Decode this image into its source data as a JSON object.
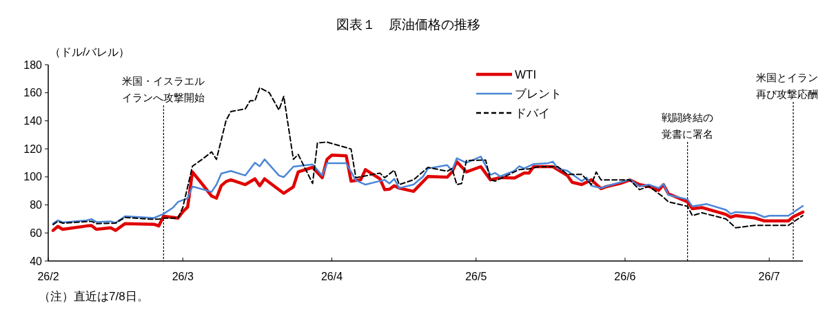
{
  "chart_data": {
    "type": "line",
    "title": "図表１　原油価格の推移",
    "ylabel": "（ドル/バレル）",
    "xlim": [
      "--02-01",
      "--07-08"
    ],
    "xticks": [
      {
        "value": "--02-01",
        "label": "26/2"
      },
      {
        "value": "--03-01",
        "label": "26/3"
      },
      {
        "value": "--04-01",
        "label": "26/4"
      },
      {
        "value": "--05-01",
        "label": "26/5"
      },
      {
        "value": "--06-01",
        "label": "26/6"
      },
      {
        "value": "--07-01",
        "label": "26/7"
      }
    ],
    "ylim": [
      40,
      180
    ],
    "yticks": [
      40,
      60,
      80,
      100,
      120,
      140,
      160,
      180
    ],
    "grid": false,
    "legend": "top",
    "marker": "none",
    "series": [
      {
        "name": "WTI",
        "color": "#e00000",
        "line_style": "solid",
        "x": [
          "--02-02",
          "--02-03",
          "--02-04",
          "--02-09",
          "--02-10",
          "--02-11",
          "--02-14",
          "--02-15",
          "--02-17",
          "--02-23",
          "--02-24",
          "--02-25",
          "--02-28",
          "--03-01",
          "--03-02",
          "--03-03",
          "--03-05",
          "--03-07",
          "--03-08",
          "--03-09",
          "--03-10",
          "--03-11",
          "--03-14",
          "--03-16",
          "--03-17",
          "--03-18",
          "--03-22",
          "--03-24",
          "--03-25",
          "--03-28",
          "--03-30",
          "--03-31",
          "--04-01",
          "--04-04",
          "--04-05",
          "--04-07",
          "--04-08",
          "--04-11",
          "--04-12",
          "--04-13",
          "--04-14",
          "--04-15",
          "--04-18",
          "--04-21",
          "--04-25",
          "--04-26",
          "--04-27",
          "--04-29",
          "--05-02",
          "--05-04",
          "--05-06",
          "--05-09",
          "--05-11",
          "--05-12",
          "--05-13",
          "--05-17",
          "--05-20",
          "--05-21",
          "--05-23",
          "--05-25",
          "--05-27",
          "--05-28",
          "--05-31",
          "--06-02",
          "--06-04",
          "--06-06",
          "--06-08",
          "--06-09",
          "--06-10",
          "--06-14",
          "--06-15",
          "--06-17",
          "--06-22",
          "--06-23",
          "--06-24",
          "--06-28",
          "--06-30",
          "--07-05",
          "--07-06",
          "--07-08"
        ],
        "values": [
          61.8,
          64.7,
          62.6,
          65,
          65.3,
          62.6,
          63.7,
          61.8,
          66.7,
          66.2,
          65,
          72,
          70.6,
          75.2,
          78.5,
          103.5,
          95,
          86.3,
          84.8,
          93.7,
          96.7,
          97.9,
          94.5,
          98.6,
          93.7,
          98.6,
          88.3,
          92.9,
          103.5,
          106.8,
          99.4,
          112.5,
          115.5,
          115,
          97,
          97.9,
          105.2,
          98.6,
          90.9,
          91.2,
          93.7,
          92,
          89.7,
          100.3,
          99.8,
          103.5,
          110.9,
          103.5,
          107.3,
          97.9,
          99.5,
          99.2,
          102.7,
          102.7,
          107.3,
          107.3,
          101,
          96.1,
          94.5,
          97.9,
          91.6,
          92.9,
          95.3,
          97.8,
          94.5,
          93.2,
          90.4,
          94.5,
          88,
          82.2,
          77.3,
          78.1,
          73.2,
          71.2,
          72.4,
          70.7,
          68.6,
          68.6,
          71.6,
          74.9
        ]
      },
      {
        "name": "ブレント",
        "color": "#4a86d8",
        "line_style": "solid",
        "x": [
          "--02-02",
          "--02-03",
          "--02-04",
          "--02-09",
          "--02-10",
          "--02-11",
          "--02-14",
          "--02-15",
          "--02-17",
          "--02-23",
          "--02-25",
          "--02-27",
          "--02-28",
          "--03-02",
          "--03-03",
          "--03-07",
          "--03-08",
          "--03-09",
          "--03-11",
          "--03-14",
          "--03-16",
          "--03-17",
          "--03-18",
          "--03-21",
          "--03-22",
          "--03-24",
          "--03-28",
          "--03-30",
          "--03-31",
          "--04-04",
          "--04-06",
          "--04-08",
          "--04-12",
          "--04-13",
          "--04-14",
          "--04-15",
          "--04-18",
          "--04-20",
          "--04-21",
          "--04-25",
          "--04-26",
          "--04-27",
          "--04-29",
          "--05-02",
          "--05-04",
          "--05-05",
          "--05-06",
          "--05-09",
          "--05-10",
          "--05-11",
          "--05-13",
          "--05-16",
          "--05-17",
          "--05-18",
          "--05-20",
          "--05-23",
          "--05-24",
          "--05-25",
          "--05-27",
          "--05-28",
          "--05-31",
          "--06-02",
          "--06-04",
          "--06-06",
          "--06-08",
          "--06-09",
          "--06-10",
          "--06-14",
          "--06-15",
          "--06-18",
          "--06-22",
          "--06-23",
          "--06-24",
          "--06-28",
          "--06-30",
          "--07-01",
          "--07-05",
          "--07-08"
        ],
        "values": [
          66.7,
          69,
          67.5,
          69,
          69.9,
          67.8,
          68.3,
          67.2,
          71.9,
          70.7,
          73.6,
          78.2,
          82.2,
          84.8,
          93.2,
          89.3,
          94.5,
          102.4,
          104.2,
          101,
          110.1,
          107.6,
          112.5,
          101,
          99.8,
          107.3,
          108.9,
          101,
          109.8,
          109.8,
          97.5,
          94.5,
          97.9,
          95.3,
          98.6,
          92,
          94.5,
          100.3,
          106,
          108.4,
          104.4,
          113.3,
          110.1,
          114.5,
          101.5,
          102.8,
          100.3,
          104.4,
          107.6,
          106,
          109.2,
          109.8,
          110.9,
          106,
          104.4,
          97,
          99.5,
          93.7,
          92,
          93.2,
          96.1,
          98.1,
          93.2,
          94.5,
          92,
          95,
          87.2,
          83.9,
          79,
          80.6,
          76.5,
          73.6,
          74.9,
          74.1,
          71.3,
          72.3,
          72.3,
          79.3
        ]
      },
      {
        "name": "ドバイ",
        "color": "#000000",
        "line_style": "dashed",
        "x": [
          "--02-02",
          "--02-03",
          "--02-04",
          "--02-10",
          "--02-11",
          "--02-15",
          "--02-17",
          "--02-22",
          "--02-24",
          "--02-25",
          "--02-28",
          "--03-01",
          "--03-03",
          "--03-05",
          "--03-07",
          "--03-08",
          "--03-10",
          "--03-11",
          "--03-14",
          "--03-15",
          "--03-16",
          "--03-17",
          "--03-19",
          "--03-21",
          "--03-22",
          "--03-24",
          "--03-25",
          "--03-28",
          "--03-29",
          "--03-31",
          "--04-05",
          "--04-06",
          "--04-11",
          "--04-12",
          "--04-14",
          "--04-15",
          "--04-18",
          "--04-21",
          "--04-25",
          "--04-26",
          "--04-27",
          "--04-28",
          "--04-29",
          "--05-03",
          "--05-04",
          "--05-05",
          "--05-10",
          "--05-12",
          "--05-14",
          "--05-18",
          "--05-20",
          "--05-23",
          "--05-25",
          "--05-26",
          "--05-27",
          "--06-02",
          "--06-04",
          "--06-06",
          "--06-09",
          "--06-10",
          "--06-14",
          "--06-15",
          "--06-17",
          "--06-22",
          "--06-24",
          "--06-28",
          "--07-05",
          "--07-08"
        ],
        "values": [
          65.9,
          68.3,
          67,
          68.3,
          66.7,
          67,
          71.1,
          69.9,
          69.9,
          70.6,
          70.6,
          78.2,
          107.6,
          112.5,
          117.8,
          112.5,
          140.3,
          146.6,
          148.5,
          154.3,
          154.3,
          163.6,
          160,
          147.7,
          157.5,
          112.5,
          116,
          95.3,
          124.3,
          124.8,
          119.9,
          99.4,
          102.7,
          99.4,
          104.8,
          94.5,
          97.9,
          106.8,
          104,
          106,
          94.5,
          95.3,
          111.7,
          112,
          97.9,
          97,
          105.2,
          105.7,
          107.3,
          107.3,
          101.8,
          101.8,
          94.5,
          103.5,
          97.8,
          97.8,
          90.9,
          93.2,
          85.5,
          82.2,
          79,
          72.4,
          74.4,
          70,
          63.7,
          65.4,
          65.4,
          72.4
        ]
      }
    ],
    "ref_lines": [
      {
        "axis": "x",
        "value": "--02-25",
        "label": "米国・イスラエルイランへ攻撃開始",
        "color": "#000000",
        "line_style": "dotted"
      },
      {
        "axis": "x",
        "value": "--06-14",
        "label": "戦闘終結の覚書に署名",
        "color": "#000000",
        "line_style": "dotted"
      },
      {
        "axis": "x",
        "value": "--07-06",
        "label": "米国とイラン再び攻撃応酬",
        "color": "#000000",
        "line_style": "dotted"
      }
    ],
    "annotations": [
      "（注）直近は7/8日。"
    ]
  }
}
